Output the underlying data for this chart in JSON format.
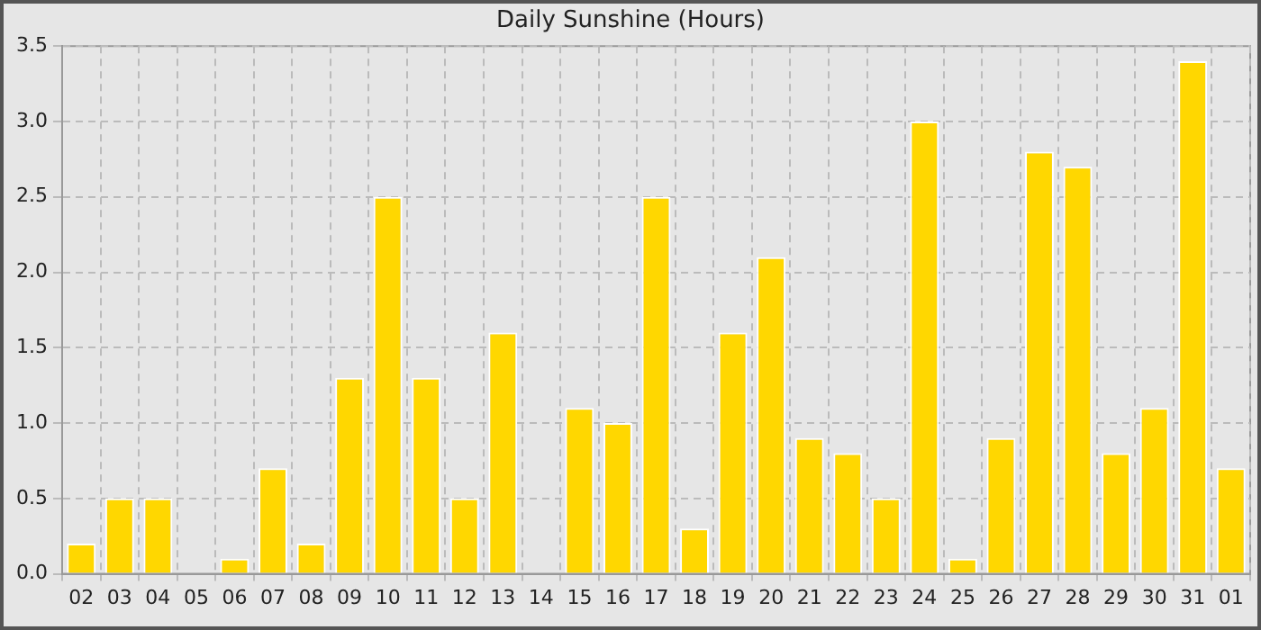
{
  "chart_data": {
    "type": "bar",
    "title": "Daily Sunshine (Hours)",
    "categories": [
      "02",
      "03",
      "04",
      "05",
      "06",
      "07",
      "08",
      "09",
      "10",
      "11",
      "12",
      "13",
      "14",
      "15",
      "16",
      "17",
      "18",
      "19",
      "20",
      "21",
      "22",
      "23",
      "24",
      "25",
      "26",
      "27",
      "28",
      "29",
      "30",
      "31",
      "01"
    ],
    "values": [
      0.2,
      0.5,
      0.5,
      0,
      0.1,
      0.7,
      0.2,
      1.3,
      2.5,
      1.3,
      0.5,
      1.6,
      0,
      1.1,
      1.0,
      2.5,
      0.3,
      1.6,
      2.1,
      0.9,
      0.8,
      0.5,
      3.0,
      0.1,
      0.9,
      2.8,
      2.7,
      0.8,
      1.1,
      3.4,
      0.7
    ],
    "color": "#ffd700",
    "ylim": [
      0,
      3.5
    ],
    "yticks": [
      {
        "value": 0,
        "label": "0.0"
      },
      {
        "value": 0.5,
        "label": "0.5"
      },
      {
        "value": 1,
        "label": "1.0"
      },
      {
        "value": 1.5,
        "label": "1.5"
      },
      {
        "value": 2,
        "label": "2.0"
      },
      {
        "value": 2.5,
        "label": "2.5"
      },
      {
        "value": 3,
        "label": "3.0"
      },
      {
        "value": 3.5,
        "label": "3.5"
      }
    ],
    "grid": true
  }
}
